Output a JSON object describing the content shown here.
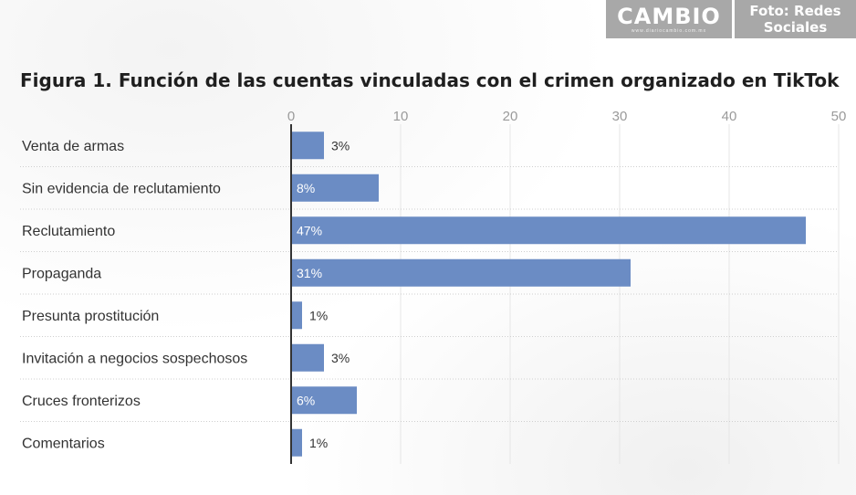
{
  "watermark": {
    "logo": "CAMBIO",
    "logo_sub": "www.diariocambio.com.mx",
    "credit_line1": "Foto: Redes",
    "credit_line2": "Sociales"
  },
  "colors": {
    "bar": "#6b8cc4",
    "label_inside": "#ffffff",
    "label_outside": "#333333",
    "grid": "#e6e6e6",
    "row_separator": "#cfcfcf",
    "axis": "#333333"
  },
  "chart_data": {
    "type": "bar",
    "orientation": "horizontal",
    "title": "Figura 1. Función de las cuentas vinculadas con el crimen organizado en TikTok",
    "categories": [
      "Venta de armas",
      "Sin evidencia de reclutamiento",
      "Reclutamiento",
      "Propaganda",
      "Presunta prostitución",
      "Invitación a negocios sospechosos",
      "Cruces fronterizos",
      "Comentarios"
    ],
    "values": [
      3,
      8,
      47,
      31,
      1,
      3,
      6,
      1
    ],
    "data_labels": [
      "3%",
      "8%",
      "47%",
      "31%",
      "1%",
      "3%",
      "6%",
      "1%"
    ],
    "xlim": [
      0,
      50
    ],
    "xticks": [
      0,
      10,
      20,
      30,
      40,
      50
    ],
    "xtick_labels": [
      "0",
      "10",
      "20",
      "30",
      "40",
      "50"
    ],
    "xaxis_position": "top",
    "grid": true,
    "legend": "none"
  }
}
